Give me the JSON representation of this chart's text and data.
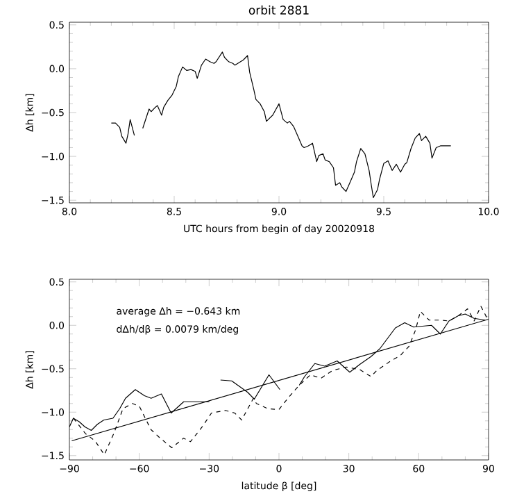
{
  "chart_data": [
    {
      "type": "line",
      "title": "orbit 2881",
      "xlabel": "UTC hours from begin of day 20020918",
      "ylabel": "Δh [km]",
      "xlim": [
        8.0,
        10.0
      ],
      "ylim": [
        -1.53,
        0.53
      ],
      "xticks": [
        {
          "value": 8,
          "label": "8.0"
        },
        {
          "value": 8.5,
          "label": "8.5"
        },
        {
          "value": 9,
          "label": "9.0"
        },
        {
          "value": 9.5,
          "label": "9.5"
        },
        {
          "value": 10,
          "label": "10.0"
        }
      ],
      "yticks": [
        {
          "value": 0.5,
          "label": "0.5"
        },
        {
          "value": 0,
          "label": "0.0"
        },
        {
          "value": -0.5,
          "label": "−0.5"
        },
        {
          "value": -1,
          "label": "−1.0"
        },
        {
          "value": -1.5,
          "label": "−1.5"
        }
      ],
      "series": [
        {
          "color": "#000000",
          "line_style": "solid",
          "x": [
            8.2,
            8.22,
            8.24,
            8.25,
            8.27,
            8.28,
            8.29,
            8.31,
            8.33,
            8.35,
            8.38,
            8.39,
            8.41,
            8.42,
            8.44,
            8.45,
            8.47,
            8.49,
            8.51,
            8.52,
            8.54,
            8.56,
            8.58,
            8.6,
            8.61,
            8.63,
            8.65,
            8.67,
            8.69,
            8.7,
            8.73,
            8.74,
            8.76,
            8.78,
            8.79,
            8.81,
            8.83,
            8.85,
            8.86,
            8.88,
            8.89,
            8.91,
            8.93,
            8.94,
            8.97,
            9.0,
            9.02,
            9.04,
            9.05,
            9.07,
            9.09,
            9.11,
            9.12,
            9.14,
            9.16,
            9.18,
            9.19,
            9.21,
            9.22,
            9.24,
            9.26,
            9.27,
            9.29,
            9.3,
            9.32,
            9.34,
            9.36,
            9.37,
            9.39,
            9.41,
            9.43,
            9.44,
            9.45,
            9.47,
            9.48,
            9.5,
            9.52,
            9.54,
            9.56,
            9.58,
            9.6,
            9.61,
            9.63,
            9.65,
            9.67,
            9.68,
            9.7,
            9.72,
            9.73,
            9.75,
            9.77,
            9.82
          ],
          "values": [
            -0.62,
            -0.62,
            -0.67,
            -0.77,
            -0.85,
            -0.74,
            -0.58,
            -0.76,
            null,
            -0.68,
            -0.46,
            -0.49,
            -0.44,
            -0.42,
            -0.53,
            -0.44,
            -0.36,
            -0.3,
            -0.2,
            -0.09,
            0.02,
            -0.02,
            -0.01,
            -0.03,
            -0.11,
            0.04,
            0.11,
            0.08,
            0.06,
            0.08,
            0.19,
            0.13,
            0.08,
            0.06,
            0.04,
            0.07,
            0.1,
            0.15,
            -0.04,
            -0.24,
            -0.35,
            -0.4,
            -0.49,
            -0.6,
            -0.53,
            -0.4,
            -0.58,
            -0.62,
            -0.6,
            -0.66,
            -0.77,
            -0.88,
            -0.9,
            -0.88,
            -0.85,
            -1.06,
            -0.99,
            -0.97,
            -1.04,
            -1.06,
            -1.13,
            -1.33,
            -1.3,
            -1.35,
            -1.4,
            -1.29,
            -1.18,
            -1.06,
            -0.91,
            -0.97,
            -1.16,
            -1.32,
            -1.47,
            -1.38,
            -1.26,
            -1.08,
            -1.05,
            -1.16,
            -1.09,
            -1.18,
            -1.09,
            -1.07,
            -0.91,
            -0.79,
            -0.74,
            -0.82,
            -0.77,
            -0.85,
            -1.02,
            -0.9,
            -0.88,
            -0.88
          ]
        }
      ]
    },
    {
      "type": "line",
      "xlabel": "latitude β [deg]",
      "ylabel": "Δh [km]",
      "xlim": [
        -90,
        90
      ],
      "ylim": [
        -1.55,
        0.53
      ],
      "xticks": [
        {
          "value": -90,
          "label": "−90"
        },
        {
          "value": -60,
          "label": "−60"
        },
        {
          "value": -30,
          "label": "−30"
        },
        {
          "value": 0,
          "label": "0"
        },
        {
          "value": 30,
          "label": "30"
        },
        {
          "value": 60,
          "label": "60"
        },
        {
          "value": 90,
          "label": "90"
        }
      ],
      "yticks": [
        {
          "value": 0.5,
          "label": "0.5"
        },
        {
          "value": 0,
          "label": "0.0"
        },
        {
          "value": -0.5,
          "label": "−0.5"
        },
        {
          "value": -1,
          "label": "−1.0"
        },
        {
          "value": -1.5,
          "label": "−1.5"
        }
      ],
      "annotations": [
        "average Δh = −0.643 km",
        "dΔh/dβ = 0.0079 km/deg"
      ],
      "series": [
        {
          "color": "#000000",
          "line_style": "solid",
          "x": [
            -90,
            -88.3,
            -85.8,
            -83.3,
            -80.6,
            -78,
            -75.2,
            -71.3,
            -68.4,
            -65.9,
            -61.7,
            -57.8,
            -54.9,
            -50.5,
            -46.3,
            -40.9,
            -35.7,
            -29.9,
            -27.5,
            -25.1,
            -20.3,
            -13.5,
            -10.6,
            -4.3,
            0.4,
            4.5,
            8.7,
            11,
            15.4,
            19.6,
            25,
            30.4,
            34.7,
            39.5,
            43.3,
            47.2,
            50,
            54,
            57.8,
            61.6,
            65.5,
            69.3,
            73,
            77,
            80,
            83.8,
            88.6
          ],
          "values": [
            -1.17,
            -1.07,
            -1.11,
            -1.17,
            -1.21,
            -1.14,
            -1.09,
            -1.07,
            -0.96,
            -0.84,
            -0.74,
            -0.81,
            -0.84,
            -0.79,
            -1.01,
            -0.88,
            -0.88,
            -0.88,
            null,
            -0.63,
            -0.64,
            -0.77,
            -0.85,
            -0.57,
            -0.74,
            null,
            -0.69,
            -0.59,
            -0.44,
            -0.47,
            -0.41,
            -0.54,
            -0.45,
            -0.36,
            -0.27,
            -0.13,
            -0.03,
            0.03,
            -0.02,
            -0.01,
            0.0,
            -0.1,
            0.05,
            0.11,
            0.13,
            0.08,
            0.06
          ]
        },
        {
          "color": "#000000",
          "line_style": "dashed",
          "x": [
            -88.3,
            -83,
            -79,
            -75,
            -71,
            -67,
            -63,
            -60,
            -55,
            -51,
            -46,
            -41,
            -38,
            -33,
            -29,
            -23,
            -19,
            -16,
            -11,
            -9.7,
            -4.8,
            0,
            3.8,
            8.7,
            13.5,
            18,
            23,
            28.9,
            34.7,
            39.5,
            42,
            48,
            52,
            55.9,
            58.7,
            60.7,
            64.5,
            69.3,
            73,
            77,
            81,
            83.8,
            86.7,
            90
          ],
          "values": [
            -1.07,
            -1.25,
            -1.33,
            -1.49,
            -1.25,
            -0.96,
            -0.9,
            -0.93,
            -1.2,
            -1.3,
            -1.41,
            -1.3,
            -1.34,
            -1.17,
            -1.01,
            -0.98,
            -1.01,
            -1.09,
            -0.84,
            -0.9,
            -0.96,
            -0.97,
            -0.84,
            -0.69,
            -0.57,
            -0.61,
            -0.52,
            -0.48,
            -0.51,
            -0.59,
            -0.52,
            -0.41,
            -0.35,
            -0.24,
            -0.05,
            0.16,
            0.06,
            0.06,
            0.05,
            0.11,
            0.19,
            0.05,
            0.22,
            0.05
          ]
        },
        {
          "color": "#000000",
          "line_style": "solid",
          "x": [
            -89,
            90
          ],
          "values": [
            -1.33,
            0.07
          ]
        }
      ]
    }
  ]
}
